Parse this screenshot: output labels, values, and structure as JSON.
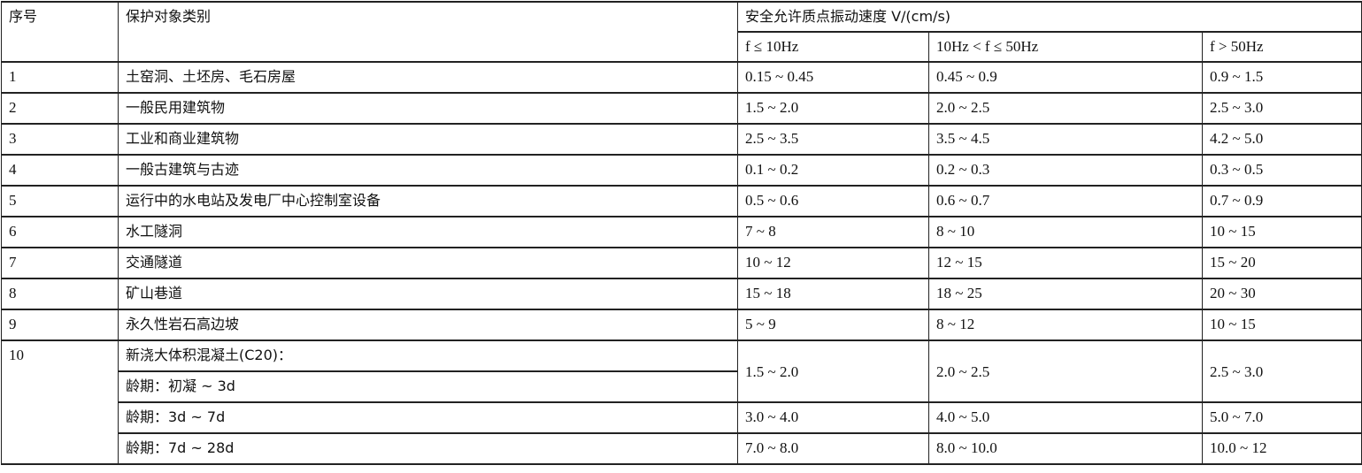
{
  "header": {
    "index": "序号",
    "category": "保护对象类别",
    "velocity_group": "安全允许质点振动速度 V/(cm/s)",
    "freq_ranges": [
      "f ≤ 10Hz",
      "10Hz < f ≤ 50Hz",
      "f > 50Hz"
    ]
  },
  "rows": [
    {
      "index": "1",
      "category": "土窑洞、土坯房、毛石房屋",
      "values": [
        "0.15 ~ 0.45",
        "0.45 ~ 0.9",
        "0.9 ~ 1.5"
      ]
    },
    {
      "index": "2",
      "category": "一般民用建筑物",
      "values": [
        "1.5 ~ 2.0",
        "2.0 ~ 2.5",
        "2.5 ~ 3.0"
      ]
    },
    {
      "index": "3",
      "category": "工业和商业建筑物",
      "values": [
        "2.5 ~ 3.5",
        "3.5 ~ 4.5",
        "4.2 ~ 5.0"
      ]
    },
    {
      "index": "4",
      "category": "一般古建筑与古迹",
      "values": [
        "0.1 ~ 0.2",
        "0.2 ~ 0.3",
        "0.3 ~ 0.5"
      ]
    },
    {
      "index": "5",
      "category": "运行中的水电站及发电厂中心控制室设备",
      "values": [
        "0.5 ~ 0.6",
        "0.6 ~ 0.7",
        "0.7 ~ 0.9"
      ]
    },
    {
      "index": "6",
      "category": "水工隧洞",
      "values": [
        "7 ~ 8",
        "8 ~ 10",
        "10 ~ 15"
      ]
    },
    {
      "index": "7",
      "category": "交通隧道",
      "values": [
        "10 ~ 12",
        "12 ~ 15",
        "15 ~ 20"
      ]
    },
    {
      "index": "8",
      "category": "矿山巷道",
      "values": [
        "15 ~ 18",
        "18 ~ 25",
        "20 ~ 30"
      ]
    },
    {
      "index": "9",
      "category": "永久性岩石高边坡",
      "values": [
        "5 ~ 9",
        "8 ~ 12",
        "10 ~ 15"
      ]
    }
  ],
  "concrete": {
    "index": "10",
    "category": "新浇大体积混凝土(C20)：",
    "ages": [
      {
        "label": "龄期：初凝 ~ 3d",
        "values": [
          "1.5 ~ 2.0",
          "2.0 ~ 2.5",
          "2.5 ~ 3.0"
        ]
      },
      {
        "label": "龄期：3d ~ 7d",
        "values": [
          "3.0 ~ 4.0",
          "4.0 ~ 5.0",
          "5.0 ~ 7.0"
        ]
      },
      {
        "label": "龄期：7d ~ 28d",
        "values": [
          "7.0 ~ 8.0",
          "8.0 ~ 10.0",
          "10.0 ~ 12"
        ]
      }
    ]
  }
}
